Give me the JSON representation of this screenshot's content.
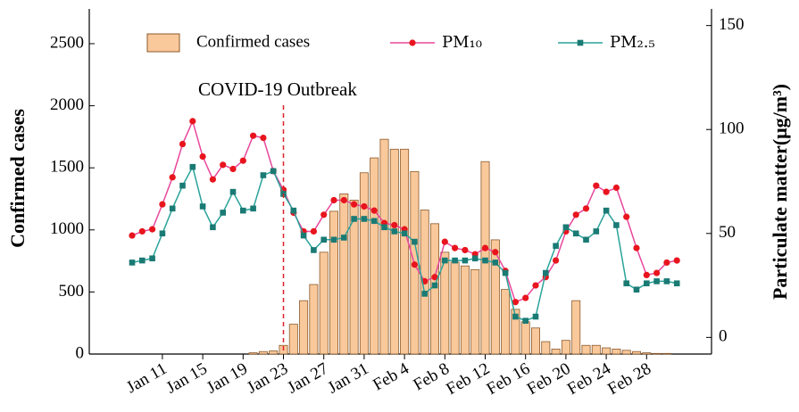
{
  "chart_data": {
    "type": "bar",
    "y_label": "Confirmed cases",
    "y2_label": "Particulate matter(μg/m³)",
    "annotation": {
      "text": "COVID-19 Outbreak",
      "category": "Jan 23"
    },
    "categories": [
      null,
      null,
      null,
      "Jan 11",
      null,
      null,
      null,
      "Jan 15",
      null,
      null,
      null,
      "Jan 19",
      null,
      null,
      null,
      "Jan 23",
      null,
      null,
      null,
      "Jan 27",
      null,
      null,
      null,
      "Jan 31",
      null,
      null,
      null,
      "Feb 4",
      null,
      null,
      null,
      "Feb 8",
      null,
      null,
      null,
      "Feb 12",
      null,
      null,
      null,
      "Feb 16",
      null,
      null,
      null,
      "Feb 20",
      null,
      null,
      null,
      "Feb 24",
      null,
      null,
      null,
      "Feb 28",
      null,
      null,
      null
    ],
    "series": [
      {
        "name": "Confirmed cases",
        "type": "bar",
        "color": "#f9c89b",
        "stroke": "#8b5a2b",
        "values": [
          0,
          0,
          0,
          0,
          0,
          0,
          0,
          0,
          0,
          0,
          0,
          0,
          10,
          20,
          25,
          70,
          240,
          430,
          560,
          820,
          1150,
          1290,
          1240,
          1460,
          1580,
          1730,
          1650,
          1650,
          1470,
          1160,
          1050,
          820,
          740,
          710,
          680,
          1550,
          920,
          520,
          360,
          260,
          210,
          100,
          40,
          110,
          430,
          70,
          70,
          50,
          40,
          30,
          20,
          10,
          5,
          5,
          0
        ]
      },
      {
        "name": "PM₁₀",
        "type": "line",
        "axis": "y2",
        "color": "#e8479c",
        "marker_color": "#e8141e",
        "marker": "circle",
        "values": [
          49,
          51,
          52,
          64,
          77,
          93,
          104,
          87,
          76,
          83,
          81,
          85,
          97,
          96,
          80,
          71,
          60,
          51,
          51,
          59,
          66,
          66,
          64,
          63,
          61,
          55,
          54,
          52,
          35,
          27,
          29,
          46,
          43,
          42,
          40,
          43,
          41,
          32,
          17,
          19,
          25,
          29,
          37,
          51,
          59,
          62,
          73,
          70,
          72,
          58,
          43,
          30,
          31,
          36,
          37
        ]
      },
      {
        "name": "PM₂.₅",
        "type": "line",
        "axis": "y2",
        "color": "#2aa39a",
        "marker_color": "#1a7a74",
        "marker": "square",
        "values": [
          36,
          37,
          38,
          50,
          62,
          73,
          82,
          63,
          53,
          60,
          70,
          61,
          62,
          78,
          80,
          69,
          61,
          49,
          42,
          47,
          47,
          48,
          57,
          57,
          56,
          53,
          51,
          50,
          46,
          21,
          25,
          37,
          37,
          37,
          38,
          37,
          36,
          31,
          10,
          8,
          10,
          31,
          44,
          53,
          50,
          47,
          51,
          61,
          54,
          26,
          23,
          26,
          27,
          27,
          26
        ]
      }
    ],
    "ylim": [
      0,
      2780
    ],
    "yticks": [
      0,
      500,
      1000,
      1500,
      2000,
      2500
    ],
    "y2lim": [
      -8,
      158
    ],
    "y2ticks": [
      0,
      50,
      100,
      150
    ]
  }
}
